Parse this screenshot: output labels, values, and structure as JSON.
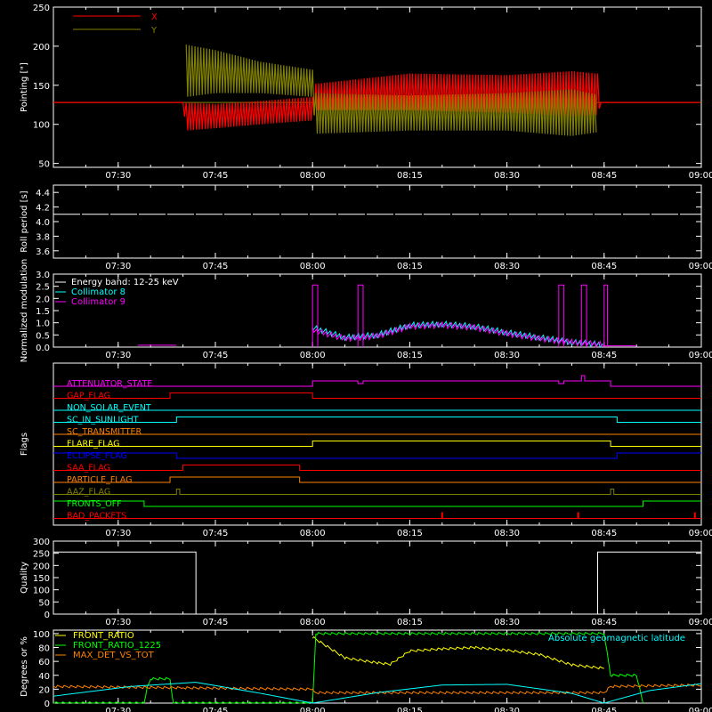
{
  "time_axis": {
    "range": [
      "07:20",
      "09:00"
    ],
    "ticks": [
      "07:30",
      "07:45",
      "08:00",
      "08:15",
      "08:30",
      "08:45",
      "09:00"
    ]
  },
  "chart_data": [
    {
      "type": "line",
      "ylabel": "Pointing [\"]",
      "ylim": [
        45,
        250
      ],
      "yticks": [
        "50",
        "100",
        "150",
        "200",
        "250"
      ],
      "series": [
        {
          "name": "X",
          "color": "#ff0000",
          "envelope": [
            [
              "07:20",
              128,
              128
            ],
            [
              "07:40",
              128,
              128
            ],
            [
              "07:40.5",
              92,
              128
            ],
            [
              "07:45",
              95,
              126
            ],
            [
              "07:52",
              100,
              130
            ],
            [
              "08:00",
              105,
              135
            ],
            [
              "08:00.5",
              118,
              152
            ],
            [
              "08:15",
              118,
              165
            ],
            [
              "08:30",
              115,
              163
            ],
            [
              "08:40",
              110,
              168
            ],
            [
              "08:44",
              112,
              165
            ],
            [
              "08:44.5",
              128,
              128
            ],
            [
              "09:00",
              128,
              128
            ]
          ]
        },
        {
          "name": "Y",
          "color": "#808000",
          "envelope": [
            [
              "07:40.5",
              135,
              202
            ],
            [
              "07:45",
              140,
              195
            ],
            [
              "07:52",
              140,
              180
            ],
            [
              "08:00",
              135,
              170
            ],
            [
              "08:00.5",
              88,
              140
            ],
            [
              "08:15",
              92,
              137
            ],
            [
              "08:30",
              92,
              140
            ],
            [
              "08:40",
              85,
              145
            ],
            [
              "08:44",
              90,
              138
            ]
          ]
        }
      ],
      "baseline": 128
    },
    {
      "type": "line",
      "ylabel": "Roll period [s]",
      "ylim": [
        3.5,
        4.5
      ],
      "yticks": [
        "3.6",
        "3.8",
        "4.0",
        "4.2",
        "4.4"
      ],
      "series": [
        {
          "name": "",
          "color": "#ffffff",
          "y": 4.1
        }
      ]
    },
    {
      "type": "line",
      "ylabel": "Normalized modulation",
      "ylim": [
        0,
        3
      ],
      "yticks": [
        "0.0",
        "0.5",
        "1.0",
        "1.5",
        "2.0",
        "2.5",
        "3.0"
      ],
      "legend": [
        "Energy band: 12-25 keV",
        "Collimator 8",
        "Collimator 9"
      ],
      "legend_colors": [
        "#ffffff",
        "#00ffff",
        "#ff00ff"
      ],
      "series": [
        {
          "name": "Collimator 8",
          "color": "#00ffff",
          "points": [
            [
              "08:00",
              0.8
            ],
            [
              "08:05",
              0.4
            ],
            [
              "08:10",
              0.5
            ],
            [
              "08:15",
              0.9
            ],
            [
              "08:20",
              0.95
            ],
            [
              "08:25",
              0.85
            ],
            [
              "08:30",
              0.6
            ],
            [
              "08:35",
              0.4
            ],
            [
              "08:40",
              0.2
            ],
            [
              "08:45",
              0.1
            ]
          ]
        },
        {
          "name": "Collimator 9",
          "color": "#ff00ff",
          "points": [
            [
              "08:00",
              0.7
            ],
            [
              "08:05",
              0.35
            ],
            [
              "08:10",
              0.45
            ],
            [
              "08:15",
              0.85
            ],
            [
              "08:20",
              0.9
            ],
            [
              "08:25",
              0.8
            ],
            [
              "08:30",
              0.55
            ],
            [
              "08:35",
              0.35
            ],
            [
              "08:40",
              0.2
            ],
            [
              "08:45",
              0.1
            ]
          ]
        }
      ],
      "spikes": [
        {
          "start": "08:00",
          "end": "08:00.8",
          "value": 2.55
        },
        {
          "start": "08:07",
          "end": "08:07.8",
          "value": 2.55
        },
        {
          "start": "08:38",
          "end": "08:38.8",
          "value": 2.55
        },
        {
          "start": "08:41.5",
          "end": "08:42.3",
          "value": 2.55
        },
        {
          "start": "08:45",
          "end": "08:45.5",
          "value": 2.55
        }
      ]
    },
    {
      "type": "line",
      "ylabel": "Flags",
      "flags": [
        {
          "name": "ATTENUATOR_STATE",
          "color": "#ff00ff",
          "transitions": [
            [
              "07:20",
              0
            ],
            [
              "08:00",
              1
            ],
            [
              "08:07",
              0.5
            ],
            [
              "08:07.8",
              1
            ],
            [
              "08:38",
              0.5
            ],
            [
              "08:38.8",
              1
            ],
            [
              "08:41.5",
              2
            ],
            [
              "08:42",
              1
            ],
            [
              "08:46",
              0
            ]
          ]
        },
        {
          "name": "GAP_FLAG",
          "color": "#ff0000",
          "transitions": [
            [
              "07:20",
              0
            ],
            [
              "07:38",
              1
            ],
            [
              "08:00",
              0
            ]
          ]
        },
        {
          "name": "NON_SOLAR_EVENT",
          "color": "#00ffff",
          "transitions": [
            [
              "07:20",
              0
            ]
          ]
        },
        {
          "name": "SC_IN_SUNLIGHT",
          "color": "#00ffff",
          "transitions": [
            [
              "07:20",
              0
            ],
            [
              "07:39",
              1
            ],
            [
              "08:47",
              0
            ]
          ]
        },
        {
          "name": "SC_TRANSMITTER",
          "color": "#ff8000",
          "transitions": [
            [
              "07:20",
              0
            ]
          ]
        },
        {
          "name": "FLARE_FLAG",
          "color": "#ffff00",
          "transitions": [
            [
              "07:20",
              0
            ],
            [
              "08:00",
              1
            ],
            [
              "08:46",
              0
            ]
          ]
        },
        {
          "name": "ECLIPSE_FLAG",
          "color": "#0000ff",
          "transitions": [
            [
              "07:20",
              1
            ],
            [
              "07:39",
              0
            ],
            [
              "08:47",
              1
            ]
          ]
        },
        {
          "name": "SAA_FLAG",
          "color": "#ff0000",
          "transitions": [
            [
              "07:20",
              0
            ],
            [
              "07:40",
              1
            ],
            [
              "07:58",
              0
            ]
          ]
        },
        {
          "name": "PARTICLE_FLAG",
          "color": "#ff8000",
          "transitions": [
            [
              "07:20",
              0
            ],
            [
              "07:38",
              1
            ],
            [
              "07:58",
              0
            ]
          ]
        },
        {
          "name": "AAZ_FLAG",
          "color": "#808000",
          "transitions": [
            [
              "07:20",
              0
            ],
            [
              "07:39",
              1
            ],
            [
              "07:39.5",
              0
            ],
            [
              "08:46",
              1
            ],
            [
              "08:46.5",
              0
            ]
          ]
        },
        {
          "name": "FRONTS_OFF",
          "color": "#00ff00",
          "transitions": [
            [
              "07:20",
              1
            ],
            [
              "07:34",
              0
            ],
            [
              "08:51",
              1
            ]
          ]
        },
        {
          "name": "BAD_PACKETS",
          "color": "#ff0000",
          "transitions": [
            [
              "07:20",
              0
            ]
          ]
        }
      ]
    },
    {
      "type": "line",
      "ylabel": "Quality",
      "ylim": [
        0,
        300
      ],
      "yticks": [
        "0",
        "50",
        "100",
        "150",
        "200",
        "250",
        "300"
      ],
      "series": [
        {
          "name": "",
          "color": "#ffffff",
          "transitions": [
            [
              "07:20",
              255
            ],
            [
              "07:42",
              0
            ],
            [
              "08:44",
              255
            ]
          ]
        }
      ]
    },
    {
      "type": "line",
      "ylabel": "Degrees or %",
      "ylim": [
        0,
        105
      ],
      "yticks": [
        "0",
        "20",
        "40",
        "60",
        "80",
        "100"
      ],
      "legend": [
        "FRONT_RATIO",
        "FRONT_RATIO_1225",
        "MAX_DET_VS_TOT",
        "Absolute geomagnetic latitude"
      ],
      "legend_colors": [
        "#ffff00",
        "#00ff00",
        "#ff8000",
        "#00ffff"
      ],
      "series": [
        {
          "name": "FRONT_RATIO",
          "color": "#ffff00",
          "points": [
            [
              "08:00",
              95
            ],
            [
              "08:05",
              65
            ],
            [
              "08:10",
              58
            ],
            [
              "08:12",
              56
            ],
            [
              "08:15",
              75
            ],
            [
              "08:20",
              78
            ],
            [
              "08:25",
              80
            ],
            [
              "08:30",
              76
            ],
            [
              "08:35",
              70
            ],
            [
              "08:40",
              55
            ],
            [
              "08:45",
              50
            ]
          ]
        },
        {
          "name": "FRONT_RATIO_1225",
          "color": "#00ff00",
          "points": [
            [
              "07:20",
              0
            ],
            [
              "07:34",
              0
            ],
            [
              "07:34.5",
              25
            ],
            [
              "07:35",
              35
            ],
            [
              "07:38",
              35
            ],
            [
              "07:38.5",
              0
            ],
            [
              "08:00",
              0
            ],
            [
              "08:00.5",
              100
            ],
            [
              "08:45",
              100
            ],
            [
              "08:46",
              40
            ],
            [
              "08:50",
              40
            ],
            [
              "08:51",
              0
            ]
          ]
        },
        {
          "name": "MAX_DET_VS_TOT",
          "color": "#ff8000",
          "points": [
            [
              "07:20",
              24
            ],
            [
              "07:40",
              22
            ],
            [
              "08:00",
              20
            ],
            [
              "08:00.5",
              15
            ],
            [
              "08:45",
              15
            ],
            [
              "08:46",
              24
            ],
            [
              "09:00",
              26
            ]
          ]
        },
        {
          "name": "Absolute geomagnetic latitude",
          "color": "#00ffff",
          "points": [
            [
              "07:20",
              10
            ],
            [
              "07:32",
              24
            ],
            [
              "07:42",
              30
            ],
            [
              "07:52",
              14
            ],
            [
              "08:00",
              0
            ],
            [
              "08:10",
              15
            ],
            [
              "08:20",
              26
            ],
            [
              "08:30",
              27
            ],
            [
              "08:40",
              14
            ],
            [
              "08:45",
              0
            ],
            [
              "08:52",
              18
            ],
            [
              "09:00",
              28
            ]
          ]
        }
      ]
    }
  ]
}
